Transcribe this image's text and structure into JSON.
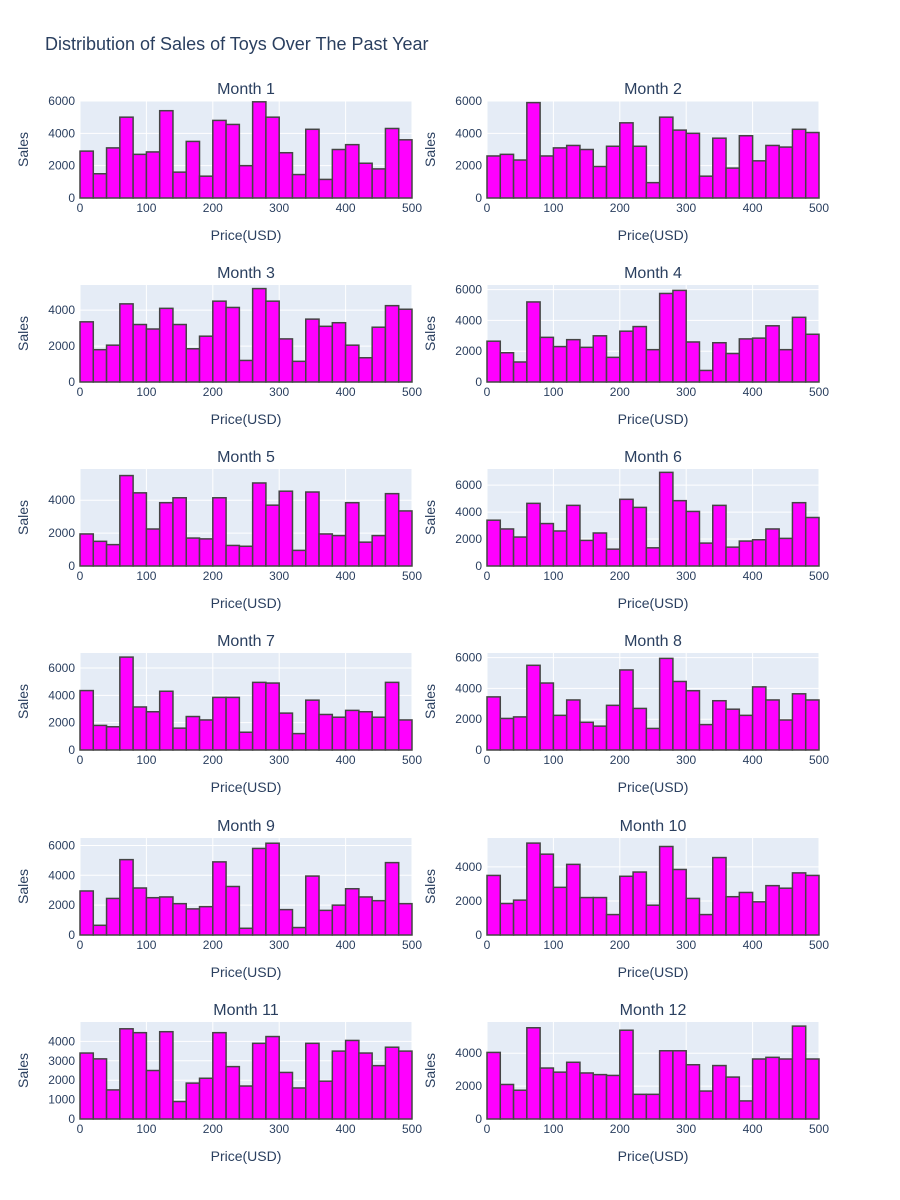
{
  "title": "Distribution of Sales of Toys Over The Past Year",
  "colors": {
    "bar_fill": "#ff00ff",
    "bar_stroke": "#444444",
    "plot_bg": "#e5ecf6",
    "grid": "#ffffff",
    "text": "#2a3f5f"
  },
  "chart_data": [
    {
      "type": "bar",
      "title": "Month 1",
      "xlabel": "Price(USD)",
      "ylabel": "Sales",
      "xlim": [
        0,
        500
      ],
      "ylim": [
        0,
        6000
      ],
      "x_ticks": [
        0,
        100,
        200,
        300,
        400,
        500
      ],
      "y_ticks": [
        0,
        2000,
        4000,
        6000
      ],
      "bin_width": 20,
      "values": [
        2900,
        1500,
        3100,
        5000,
        2700,
        2850,
        5400,
        1600,
        3500,
        1350,
        4800,
        4550,
        2000,
        5950,
        5000,
        2800,
        1450,
        4250,
        1150,
        3000,
        3300,
        2150,
        1800,
        4300,
        3600
      ]
    },
    {
      "type": "bar",
      "title": "Month 2",
      "xlabel": "Price(USD)",
      "ylabel": "Sales",
      "xlim": [
        0,
        500
      ],
      "ylim": [
        0,
        6000
      ],
      "x_ticks": [
        0,
        100,
        200,
        300,
        400,
        500
      ],
      "y_ticks": [
        0,
        2000,
        4000,
        6000
      ],
      "bin_width": 20,
      "values": [
        2600,
        2700,
        2350,
        5900,
        2600,
        3100,
        3250,
        3000,
        1950,
        3200,
        4650,
        3200,
        950,
        5000,
        4200,
        4000,
        1350,
        3700,
        1850,
        3850,
        2300,
        3250,
        3150,
        4250,
        4050
      ]
    },
    {
      "type": "bar",
      "title": "Month 3",
      "xlabel": "Price(USD)",
      "ylabel": "Sales",
      "xlim": [
        0,
        500
      ],
      "ylim": [
        0,
        5400
      ],
      "x_ticks": [
        0,
        100,
        200,
        300,
        400,
        500
      ],
      "y_ticks": [
        0,
        2000,
        4000
      ],
      "bin_width": 20,
      "values": [
        3350,
        1800,
        2050,
        4350,
        3200,
        2950,
        4100,
        3200,
        1850,
        2550,
        4500,
        4150,
        1200,
        5200,
        4500,
        2400,
        1150,
        3500,
        3100,
        3300,
        2050,
        1350,
        3050,
        4250,
        4050
      ]
    },
    {
      "type": "bar",
      "title": "Month 4",
      "xlabel": "Price(USD)",
      "ylabel": "Sales",
      "xlim": [
        0,
        500
      ],
      "ylim": [
        0,
        6300
      ],
      "x_ticks": [
        0,
        100,
        200,
        300,
        400,
        500
      ],
      "y_ticks": [
        0,
        2000,
        4000,
        6000
      ],
      "bin_width": 20,
      "values": [
        2650,
        1900,
        1300,
        5200,
        2900,
        2300,
        2750,
        2250,
        3000,
        1600,
        3300,
        3600,
        2100,
        5750,
        5950,
        2600,
        750,
        2550,
        1850,
        2800,
        2850,
        3650,
        2100,
        4200,
        3100
      ]
    },
    {
      "type": "bar",
      "title": "Month 5",
      "xlabel": "Price(USD)",
      "ylabel": "Sales",
      "xlim": [
        0,
        500
      ],
      "ylim": [
        0,
        5900
      ],
      "x_ticks": [
        0,
        100,
        200,
        300,
        400,
        500
      ],
      "y_ticks": [
        0,
        2000,
        4000
      ],
      "bin_width": 20,
      "values": [
        1950,
        1500,
        1300,
        5500,
        4450,
        2250,
        3850,
        4150,
        1700,
        1650,
        4150,
        1250,
        1200,
        5050,
        3700,
        4550,
        950,
        4500,
        1950,
        1850,
        3850,
        1450,
        1850,
        4400,
        3350
      ]
    },
    {
      "type": "bar",
      "title": "Month 6",
      "xlabel": "Price(USD)",
      "ylabel": "Sales",
      "xlim": [
        0,
        500
      ],
      "ylim": [
        0,
        7200
      ],
      "x_ticks": [
        0,
        100,
        200,
        300,
        400,
        500
      ],
      "y_ticks": [
        0,
        2000,
        4000,
        6000
      ],
      "bin_width": 20,
      "values": [
        3400,
        2750,
        2150,
        4650,
        3150,
        2600,
        4500,
        1900,
        2450,
        1250,
        4950,
        4350,
        1350,
        6950,
        4850,
        4050,
        1700,
        4500,
        1400,
        1850,
        1950,
        2750,
        2050,
        4700,
        3600
      ]
    },
    {
      "type": "bar",
      "title": "Month 7",
      "xlabel": "Price(USD)",
      "ylabel": "Sales",
      "xlim": [
        0,
        500
      ],
      "ylim": [
        0,
        7100
      ],
      "x_ticks": [
        0,
        100,
        200,
        300,
        400,
        500
      ],
      "y_ticks": [
        0,
        2000,
        4000,
        6000
      ],
      "bin_width": 20,
      "values": [
        4350,
        1800,
        1700,
        6800,
        3150,
        2800,
        4300,
        1600,
        2450,
        2200,
        3850,
        3850,
        1300,
        4950,
        4900,
        2700,
        1200,
        3650,
        2600,
        2400,
        2900,
        2800,
        2400,
        4950,
        2200
      ]
    },
    {
      "type": "bar",
      "title": "Month 8",
      "xlabel": "Price(USD)",
      "ylabel": "Sales",
      "xlim": [
        0,
        500
      ],
      "ylim": [
        0,
        6300
      ],
      "x_ticks": [
        0,
        100,
        200,
        300,
        400,
        500
      ],
      "y_ticks": [
        0,
        2000,
        4000,
        6000
      ],
      "bin_width": 20,
      "values": [
        3450,
        2050,
        2150,
        5500,
        4350,
        2250,
        3250,
        1800,
        1550,
        2900,
        5200,
        2700,
        1400,
        5950,
        4450,
        3850,
        1650,
        3200,
        2650,
        2250,
        4100,
        3250,
        1950,
        3650,
        3250
      ]
    },
    {
      "type": "bar",
      "title": "Month 9",
      "xlabel": "Price(USD)",
      "ylabel": "Sales",
      "xlim": [
        0,
        500
      ],
      "ylim": [
        0,
        6500
      ],
      "x_ticks": [
        0,
        100,
        200,
        300,
        400,
        500
      ],
      "y_ticks": [
        0,
        2000,
        4000,
        6000
      ],
      "bin_width": 20,
      "values": [
        2950,
        650,
        2450,
        5050,
        3150,
        2500,
        2550,
        2100,
        1750,
        1900,
        4900,
        3250,
        450,
        5800,
        6150,
        1700,
        500,
        3950,
        1650,
        2000,
        3100,
        2550,
        2300,
        4850,
        2100
      ]
    },
    {
      "type": "bar",
      "title": "Month 10",
      "xlabel": "Price(USD)",
      "ylabel": "Sales",
      "xlim": [
        0,
        500
      ],
      "ylim": [
        0,
        5700
      ],
      "x_ticks": [
        0,
        100,
        200,
        300,
        400,
        500
      ],
      "y_ticks": [
        0,
        2000,
        4000
      ],
      "bin_width": 20,
      "values": [
        3500,
        1850,
        2050,
        5400,
        4750,
        2800,
        4150,
        2200,
        2200,
        1200,
        3450,
        3700,
        1750,
        5200,
        3850,
        2150,
        1200,
        4550,
        2250,
        2500,
        1950,
        2900,
        2750,
        3650,
        3500
      ]
    },
    {
      "type": "bar",
      "title": "Month 11",
      "xlabel": "Price(USD)",
      "ylabel": "Sales",
      "xlim": [
        0,
        500
      ],
      "ylim": [
        0,
        5000
      ],
      "x_ticks": [
        0,
        100,
        200,
        300,
        400,
        500
      ],
      "y_ticks": [
        0,
        1000,
        2000,
        3000,
        4000
      ],
      "bin_width": 20,
      "values": [
        3400,
        3100,
        1500,
        4650,
        4450,
        2500,
        4500,
        900,
        1850,
        2100,
        4450,
        2700,
        1700,
        3900,
        4250,
        2400,
        1600,
        3900,
        1950,
        3500,
        4050,
        3400,
        2750,
        3700,
        3500
      ]
    },
    {
      "type": "bar",
      "title": "Month 12",
      "xlabel": "Price(USD)",
      "ylabel": "Sales",
      "xlim": [
        0,
        500
      ],
      "ylim": [
        0,
        5900
      ],
      "x_ticks": [
        0,
        100,
        200,
        300,
        400,
        500
      ],
      "y_ticks": [
        0,
        2000,
        4000
      ],
      "bin_width": 20,
      "values": [
        4050,
        2100,
        1750,
        5550,
        3100,
        2850,
        3450,
        2800,
        2700,
        2650,
        5400,
        1500,
        1500,
        4150,
        4150,
        3300,
        1700,
        3250,
        2550,
        1100,
        3650,
        3750,
        3650,
        5650,
        3650
      ]
    }
  ]
}
